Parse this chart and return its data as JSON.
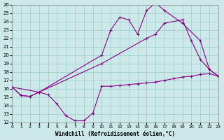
{
  "xlabel": "Windchill (Refroidissement éolien,°C)",
  "xlim": [
    0,
    23
  ],
  "ylim": [
    12,
    26
  ],
  "xticks": [
    0,
    1,
    2,
    3,
    4,
    5,
    6,
    7,
    8,
    9,
    10,
    11,
    12,
    13,
    14,
    15,
    16,
    17,
    18,
    19,
    20,
    21,
    22,
    23
  ],
  "yticks": [
    12,
    13,
    14,
    15,
    16,
    17,
    18,
    19,
    20,
    21,
    22,
    23,
    24,
    25,
    26
  ],
  "bg_color": "#cce8e8",
  "line_color": "#880088",
  "grid_color": "#99cccc",
  "series": [
    {
      "x": [
        0,
        1,
        2,
        3,
        4,
        5,
        6,
        7,
        8,
        9,
        10,
        11,
        12,
        13,
        14,
        15,
        16,
        17,
        18,
        19,
        20,
        21,
        22,
        23
      ],
      "y": [
        16.2,
        15.2,
        15.1,
        15.6,
        15.3,
        14.2,
        12.8,
        12.2,
        12.2,
        13.1,
        16.3,
        16.3,
        16.4,
        16.5,
        16.6,
        16.7,
        16.8,
        17.0,
        17.2,
        17.4,
        17.5,
        17.7,
        17.8,
        17.5
      ]
    },
    {
      "x": [
        0,
        1,
        2,
        3,
        10,
        11,
        12,
        13,
        14,
        15,
        16,
        17,
        19,
        21,
        22,
        23
      ],
      "y": [
        16.2,
        15.2,
        15.1,
        15.6,
        20.0,
        23.0,
        24.5,
        24.2,
        22.5,
        25.3,
        26.2,
        25.3,
        23.8,
        21.7,
        18.3,
        17.5
      ]
    },
    {
      "x": [
        0,
        3,
        10,
        15,
        16,
        17,
        19,
        20,
        21,
        22,
        23
      ],
      "y": [
        16.2,
        15.6,
        19.0,
        22.0,
        22.5,
        23.8,
        24.2,
        21.7,
        19.5,
        18.3,
        17.5
      ]
    }
  ]
}
